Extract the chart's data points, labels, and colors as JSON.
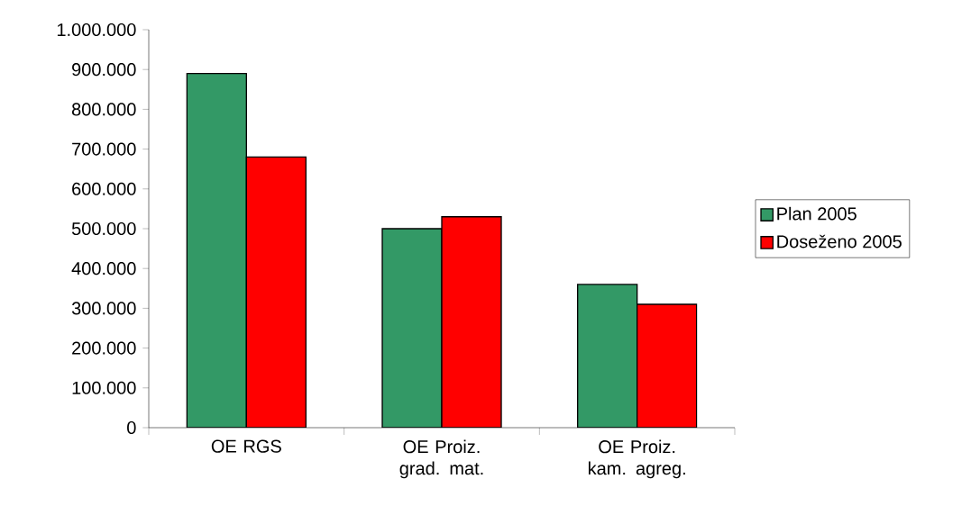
{
  "chart_data": {
    "type": "bar",
    "categories": [
      "OE RGS",
      "OE Proiz. grad. mat.",
      "OE Proiz. kam. agreg."
    ],
    "series": [
      {
        "name": "Plan 2005",
        "color": "#339966",
        "values": [
          890000,
          500000,
          360000
        ]
      },
      {
        "name": "Doseženo 2005",
        "color": "#ff0000",
        "values": [
          680000,
          530000,
          310000
        ]
      }
    ],
    "ylim": [
      0,
      1000000
    ],
    "yticks": [
      {
        "value": 0,
        "label": "0"
      },
      {
        "value": 100000,
        "label": "100.000"
      },
      {
        "value": 200000,
        "label": "200.000"
      },
      {
        "value": 300000,
        "label": "300.000"
      },
      {
        "value": 400000,
        "label": "400.000"
      },
      {
        "value": 500000,
        "label": "500.000"
      },
      {
        "value": 600000,
        "label": "600.000"
      },
      {
        "value": 700000,
        "label": "700.000"
      },
      {
        "value": 800000,
        "label": "800.000"
      },
      {
        "value": 900000,
        "label": "900.000"
      },
      {
        "value": 1000000,
        "label": "1.000.000"
      }
    ],
    "grid": false,
    "legend": "right"
  }
}
